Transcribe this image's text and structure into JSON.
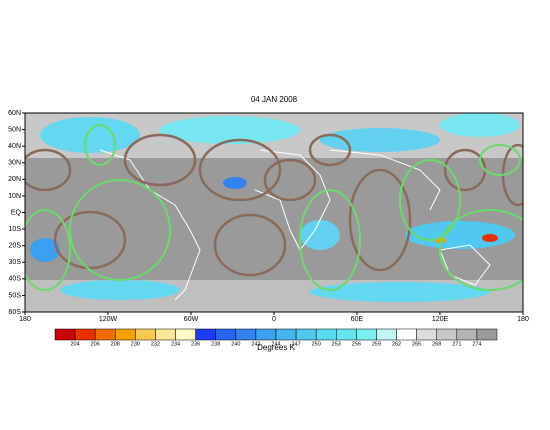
{
  "title": "04 JAN 2008",
  "map": {
    "lat_labels": [
      "60N",
      "50N",
      "40N",
      "30N",
      "20N",
      "10N",
      "EQ",
      "10S",
      "20S",
      "30S",
      "40S",
      "50S",
      "60S"
    ],
    "lon_labels": [
      "180",
      "120W",
      "60W",
      "0",
      "60E",
      "120E",
      "180"
    ]
  },
  "colorbar": {
    "labels": [
      "204",
      "206",
      "208",
      "230",
      "232",
      "234",
      "236",
      "238",
      "240",
      "242",
      "244",
      "247",
      "250",
      "253",
      "256",
      "259",
      "262",
      "265",
      "268",
      "271",
      "274"
    ],
    "colors": [
      "#c80000",
      "#e63200",
      "#f06e00",
      "#f5a000",
      "#fac850",
      "#fae696",
      "#fffac8",
      "#1e3cff",
      "#2864f0",
      "#3282f0",
      "#3ca0f0",
      "#46b4f0",
      "#50c8f0",
      "#5adcf0",
      "#64e6f0",
      "#78f0f0",
      "#bef5f5",
      "#ffffff",
      "#dcdcdc",
      "#c8c8c8",
      "#b4b4b4",
      "#9a9a9a"
    ],
    "unit": "Degrees K"
  }
}
